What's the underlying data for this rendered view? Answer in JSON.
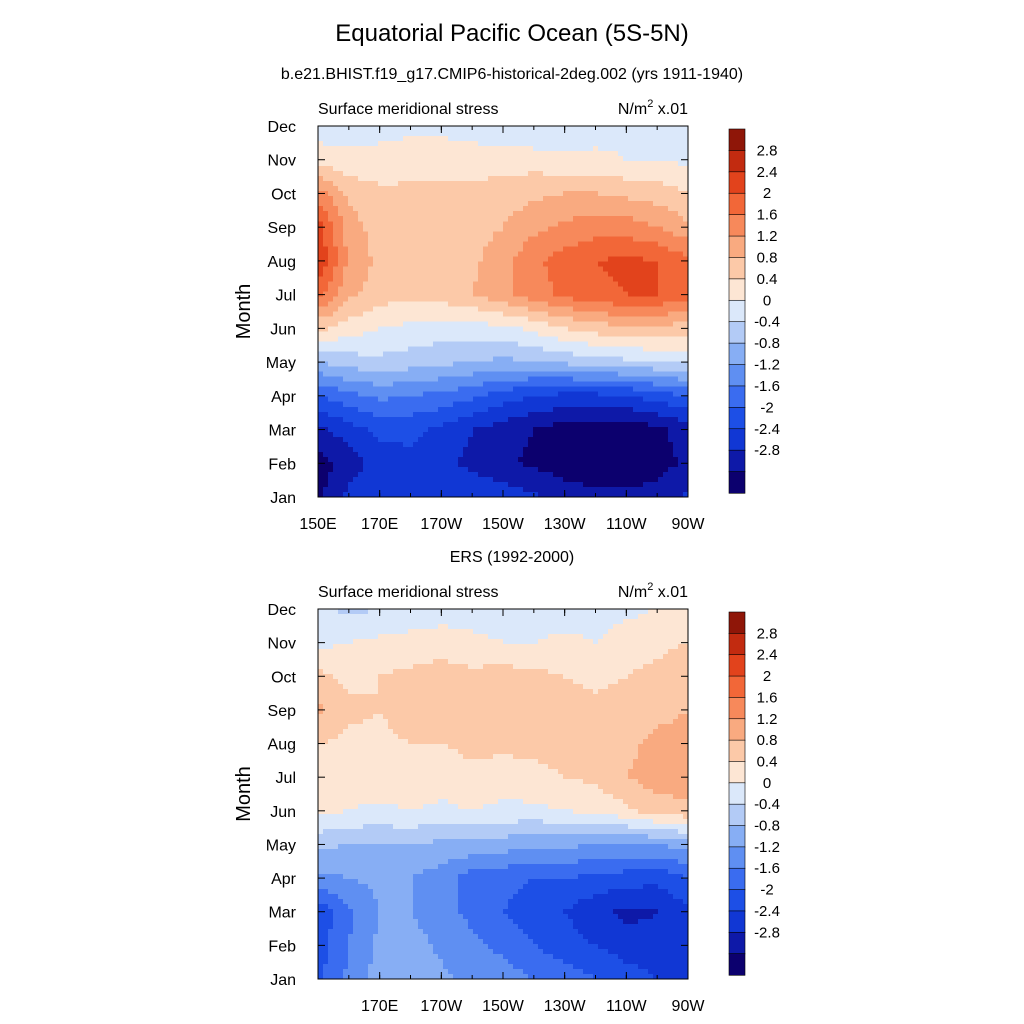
{
  "figure": {
    "title": "Equatorial Pacific Ocean (5S-5N)"
  },
  "colorbar": {
    "colors": [
      "#0c006e",
      "#0e19a8",
      "#1137d4",
      "#1d4fe6",
      "#3a6cf0",
      "#5f8ff2",
      "#87aef4",
      "#b3cbf6",
      "#dbe8fa",
      "#fde6d4",
      "#fcc9a8",
      "#f9aa80",
      "#f7895b",
      "#f26738",
      "#e2431c",
      "#c22b10",
      "#8f1608"
    ],
    "labels": [
      "2.8",
      "2.4",
      "2",
      "1.6",
      "1.2",
      "0.8",
      "0.4",
      "0",
      "-0.4",
      "-0.8",
      "-1.2",
      "-1.6",
      "-2",
      "-2.4",
      "-2.8"
    ]
  },
  "chart_data": [
    {
      "type": "heatmap",
      "title": "b.e21.BHIST.f19_g17.CMIP6-historical-2deg.002 (yrs 1911-1940)",
      "left_label": "Surface meridional stress",
      "units_label": "N/m",
      "units_sup": "2",
      "units_suffix": " x.01",
      "ylabel": "Month",
      "y_categories": [
        "Jan",
        "Feb",
        "Mar",
        "Apr",
        "May",
        "Jun",
        "Jul",
        "Aug",
        "Sep",
        "Oct",
        "Nov",
        "Dec"
      ],
      "x_tick_labels": [
        "150E",
        "170E",
        "170W",
        "150W",
        "130W",
        "110W",
        "90W"
      ],
      "x": [
        150,
        160,
        170,
        180,
        190,
        200,
        210,
        220,
        230,
        240,
        250,
        260,
        270
      ],
      "z": [
        [
          -2.9,
          -2.3,
          -2.1,
          -2.0,
          -2.1,
          -2.1,
          -2.2,
          -2.3,
          -2.6,
          -2.7,
          -2.7,
          -2.6,
          -2.3
        ],
        [
          -3.0,
          -2.6,
          -2.2,
          -2.1,
          -2.3,
          -2.5,
          -2.7,
          -2.9,
          -3.0,
          -3.1,
          -3.1,
          -3.0,
          -2.7
        ],
        [
          -2.5,
          -2.2,
          -1.9,
          -1.9,
          -2.1,
          -2.4,
          -2.6,
          -2.8,
          -3.0,
          -3.1,
          -3.1,
          -2.9,
          -2.6
        ],
        [
          -1.6,
          -1.3,
          -1.1,
          -1.2,
          -1.3,
          -1.5,
          -1.8,
          -2.0,
          -2.1,
          -2.1,
          -2.0,
          -1.8,
          -1.6
        ],
        [
          -0.4,
          -0.2,
          -0.1,
          -0.2,
          -0.3,
          -0.4,
          -0.5,
          -0.4,
          -0.3,
          -0.2,
          -0.1,
          0.0,
          0.1
        ],
        [
          0.9,
          0.6,
          0.4,
          0.3,
          0.2,
          0.2,
          0.3,
          0.5,
          0.8,
          1.0,
          1.1,
          1.1,
          1.0
        ],
        [
          2.1,
          1.3,
          1.0,
          0.9,
          1.0,
          1.2,
          1.5,
          1.8,
          2.1,
          2.3,
          2.4,
          2.4,
          2.2
        ],
        [
          2.8,
          1.5,
          1.1,
          1.0,
          1.0,
          1.1,
          1.5,
          1.9,
          2.2,
          2.4,
          2.5,
          2.4,
          2.1
        ],
        [
          2.6,
          1.4,
          1.0,
          0.9,
          0.9,
          1.0,
          1.2,
          1.5,
          1.7,
          1.8,
          1.8,
          1.6,
          1.3
        ],
        [
          1.8,
          1.1,
          0.9,
          0.9,
          0.9,
          0.9,
          1.0,
          1.1,
          1.2,
          1.2,
          1.1,
          1.0,
          0.8
        ],
        [
          0.6,
          0.5,
          0.5,
          0.6,
          0.6,
          0.6,
          0.6,
          0.6,
          0.5,
          0.5,
          0.4,
          0.4,
          0.3
        ],
        [
          0.2,
          0.2,
          0.3,
          0.3,
          0.3,
          0.2,
          0.1,
          0.0,
          0.1,
          0.2,
          0.3,
          0.3,
          0.2
        ]
      ],
      "contour_levels": [
        -3.2,
        -2.8,
        -2.4,
        -2.0,
        -1.6,
        -1.2,
        -0.8,
        -0.4,
        0.0,
        0.4,
        0.8,
        1.2,
        1.6,
        2.0,
        2.4,
        2.8,
        3.2
      ],
      "grid": false,
      "legend": "right"
    },
    {
      "type": "heatmap",
      "title": "ERS (1992-2000)",
      "left_label": "Surface meridional stress",
      "units_label": "N/m",
      "units_sup": "2",
      "units_suffix": " x.01",
      "ylabel": "Month",
      "y_categories": [
        "Jan",
        "Feb",
        "Mar",
        "Apr",
        "May",
        "Jun",
        "Jul",
        "Aug",
        "Sep",
        "Oct",
        "Nov",
        "Dec"
      ],
      "x_tick_labels": [
        "170E",
        "170W",
        "150W",
        "130W",
        "110W",
        "90W"
      ],
      "x": [
        150,
        160,
        170,
        180,
        190,
        200,
        210,
        220,
        230,
        240,
        250,
        260,
        270
      ],
      "z": [
        [
          -1.7,
          -1.1,
          -0.6,
          -0.5,
          -0.7,
          -0.9,
          -1.0,
          -1.2,
          -1.4,
          -1.6,
          -1.8,
          -2.0,
          -2.1
        ],
        [
          -1.8,
          -1.2,
          -0.7,
          -0.6,
          -0.9,
          -1.1,
          -1.3,
          -1.6,
          -1.8,
          -2.0,
          -2.2,
          -2.3,
          -2.1
        ],
        [
          -1.9,
          -1.3,
          -0.8,
          -0.8,
          -1.1,
          -1.3,
          -1.6,
          -1.8,
          -2.0,
          -2.3,
          -2.5,
          -2.4,
          -2.1
        ],
        [
          -0.9,
          -0.8,
          -0.7,
          -0.8,
          -1.0,
          -1.4,
          -1.5,
          -1.6,
          -1.6,
          -1.7,
          -1.8,
          -1.9,
          -1.6
        ],
        [
          -0.3,
          -0.4,
          -0.4,
          -0.4,
          -0.5,
          -0.5,
          -0.6,
          -0.7,
          -0.7,
          -0.8,
          -0.8,
          -0.8,
          -0.6
        ],
        [
          0.5,
          0.4,
          0.3,
          0.4,
          0.3,
          0.4,
          0.3,
          0.3,
          0.4,
          0.5,
          0.7,
          1.0,
          1.1
        ],
        [
          0.8,
          0.6,
          0.7,
          0.7,
          0.6,
          0.7,
          0.6,
          0.7,
          0.8,
          0.9,
          1.2,
          1.4,
          1.4
        ],
        [
          0.8,
          0.7,
          0.7,
          0.8,
          0.8,
          0.9,
          0.9,
          0.9,
          0.9,
          0.9,
          1.1,
          1.3,
          1.3
        ],
        [
          1.3,
          0.9,
          0.8,
          1.0,
          1.0,
          1.0,
          1.1,
          1.0,
          1.0,
          0.9,
          1.0,
          1.1,
          1.2
        ],
        [
          0.9,
          0.7,
          0.8,
          0.9,
          1.0,
          0.9,
          1.0,
          0.9,
          0.8,
          0.7,
          0.8,
          0.9,
          1.1
        ],
        [
          0.3,
          0.4,
          0.5,
          0.5,
          0.6,
          0.5,
          0.4,
          0.4,
          0.5,
          0.4,
          0.6,
          0.7,
          0.8
        ],
        [
          0.1,
          -0.1,
          0.0,
          0.2,
          0.2,
          0.2,
          0.2,
          0.2,
          0.2,
          0.2,
          0.3,
          0.4,
          0.4
        ]
      ],
      "contour_levels": [
        -3.2,
        -2.8,
        -2.4,
        -2.0,
        -1.6,
        -1.2,
        -0.8,
        -0.4,
        0.0,
        0.4,
        0.8,
        1.2,
        1.6,
        2.0,
        2.4,
        2.8,
        3.2
      ],
      "grid": false,
      "legend": "right"
    }
  ]
}
